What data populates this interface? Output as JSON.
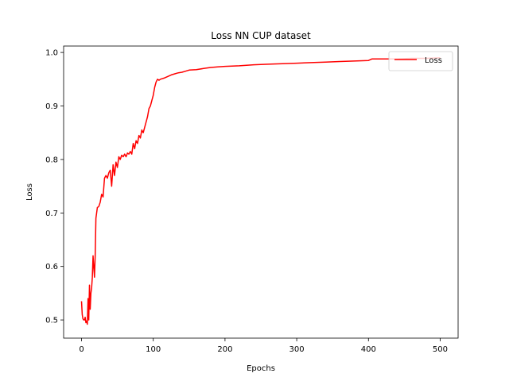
{
  "chart_data": {
    "type": "line",
    "title": "Loss NN CUP dataset",
    "xlabel": "Epochs",
    "ylabel": "Loss",
    "xlim": [
      -25,
      525
    ],
    "ylim": [
      0.466,
      1.012
    ],
    "xticks": [
      0,
      100,
      200,
      300,
      400,
      500
    ],
    "yticks": [
      0.5,
      0.6,
      0.7,
      0.8,
      0.9,
      1.0
    ],
    "xtick_labels": [
      "0",
      "100",
      "200",
      "300",
      "400",
      "500"
    ],
    "ytick_labels": [
      "0.5",
      "0.6",
      "0.7",
      "0.8",
      "0.9",
      "1.0"
    ],
    "grid": false,
    "legend_position": "top-right",
    "series": [
      {
        "name": "Loss",
        "color": "#ff0000",
        "x": [
          0,
          1,
          2,
          3,
          4,
          5,
          6,
          7,
          8,
          9,
          10,
          11,
          12,
          13,
          14,
          15,
          16,
          17,
          18,
          19,
          20,
          21,
          22,
          24,
          26,
          28,
          30,
          32,
          34,
          36,
          38,
          40,
          42,
          44,
          46,
          48,
          50,
          52,
          54,
          56,
          58,
          60,
          62,
          64,
          66,
          68,
          70,
          72,
          74,
          76,
          78,
          80,
          82,
          84,
          86,
          88,
          90,
          92,
          94,
          96,
          98,
          100,
          102,
          104,
          106,
          108,
          110,
          115,
          120,
          125,
          130,
          135,
          140,
          145,
          150,
          160,
          170,
          180,
          190,
          200,
          220,
          240,
          260,
          280,
          300,
          320,
          340,
          360,
          380,
          400,
          405,
          420,
          440,
          460,
          480,
          500
        ],
        "y": [
          0.535,
          0.51,
          0.502,
          0.5,
          0.5,
          0.505,
          0.495,
          0.498,
          0.492,
          0.54,
          0.5,
          0.565,
          0.52,
          0.55,
          0.56,
          0.58,
          0.62,
          0.6,
          0.58,
          0.62,
          0.69,
          0.7,
          0.71,
          0.712,
          0.72,
          0.735,
          0.73,
          0.765,
          0.77,
          0.765,
          0.775,
          0.78,
          0.75,
          0.79,
          0.77,
          0.795,
          0.785,
          0.805,
          0.8,
          0.808,
          0.805,
          0.81,
          0.805,
          0.812,
          0.81,
          0.815,
          0.81,
          0.83,
          0.82,
          0.835,
          0.83,
          0.845,
          0.84,
          0.855,
          0.85,
          0.86,
          0.87,
          0.88,
          0.895,
          0.9,
          0.91,
          0.92,
          0.935,
          0.945,
          0.95,
          0.948,
          0.95,
          0.952,
          0.955,
          0.958,
          0.96,
          0.962,
          0.963,
          0.965,
          0.967,
          0.968,
          0.97,
          0.972,
          0.973,
          0.974,
          0.975,
          0.977,
          0.978,
          0.979,
          0.98,
          0.981,
          0.982,
          0.983,
          0.984,
          0.985,
          0.988,
          0.988,
          0.988,
          0.989,
          0.989,
          0.99
        ]
      }
    ]
  }
}
